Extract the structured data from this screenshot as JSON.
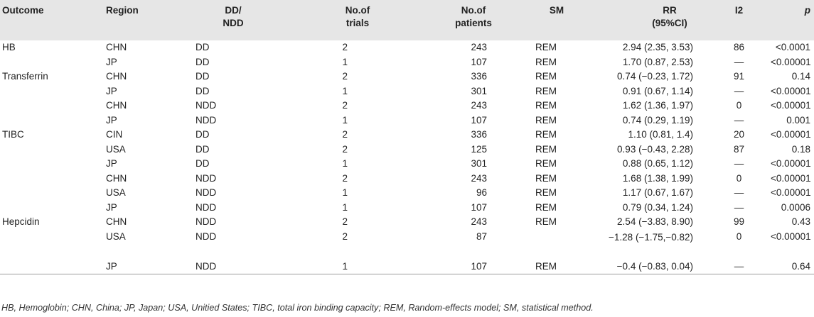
{
  "headers": {
    "outcome": "Outcome",
    "region": "Region",
    "dd_ndd": "DD/ NDD",
    "trials": "No.of trials",
    "patients": "No.of patients",
    "sm": "SM",
    "rr": "RR (95%CI)",
    "i2": "I2",
    "p": "p"
  },
  "rows": [
    {
      "outcome": "HB",
      "region": "CHN",
      "dd": "DD",
      "trials": "2",
      "patients": "243",
      "sm": "REM",
      "rr": "2.94 (2.35, 3.53)",
      "i2": "86",
      "p": "<0.0001"
    },
    {
      "outcome": "",
      "region": "JP",
      "dd": "DD",
      "trials": "1",
      "patients": "107",
      "sm": "REM",
      "rr": "1.70 (0.87, 2.53)",
      "i2": "—",
      "p": "<0.00001"
    },
    {
      "outcome": "Transferrin",
      "region": "CHN",
      "dd": "DD",
      "trials": "2",
      "patients": "336",
      "sm": "REM",
      "rr": "0.74 (−0.23, 1.72)",
      "i2": "91",
      "p": "0.14"
    },
    {
      "outcome": "",
      "region": "JP",
      "dd": "DD",
      "trials": "1",
      "patients": "301",
      "sm": "REM",
      "rr": "0.91 (0.67, 1.14)",
      "i2": "—",
      "p": "<0.00001"
    },
    {
      "outcome": "",
      "region": "CHN",
      "dd": "NDD",
      "trials": "2",
      "patients": "243",
      "sm": "REM",
      "rr": "1.62 (1.36, 1.97)",
      "i2": "0",
      "p": "<0.00001"
    },
    {
      "outcome": "",
      "region": "JP",
      "dd": "NDD",
      "trials": "1",
      "patients": "107",
      "sm": "REM",
      "rr": "0.74 (0.29, 1.19)",
      "i2": "—",
      "p": "0.001"
    },
    {
      "outcome": "TIBC",
      "region": "CIN",
      "dd": "DD",
      "trials": "2",
      "patients": "336",
      "sm": "REM",
      "rr": "1.10 (0.81, 1.4)",
      "i2": "20",
      "p": "<0.00001"
    },
    {
      "outcome": "",
      "region": "USA",
      "dd": "DD",
      "trials": "2",
      "patients": "125",
      "sm": "REM",
      "rr": "0.93 (−0.43, 2.28)",
      "i2": "87",
      "p": "0.18"
    },
    {
      "outcome": "",
      "region": "JP",
      "dd": "DD",
      "trials": "1",
      "patients": "301",
      "sm": "REM",
      "rr": "0.88 (0.65, 1.12)",
      "i2": "—",
      "p": "<0.00001"
    },
    {
      "outcome": "",
      "region": "CHN",
      "dd": "NDD",
      "trials": "2",
      "patients": "243",
      "sm": "REM",
      "rr": "1.68 (1.38, 1.99)",
      "i2": "0",
      "p": "<0.00001"
    },
    {
      "outcome": "",
      "region": "USA",
      "dd": "NDD",
      "trials": "1",
      "patients": "96",
      "sm": "REM",
      "rr": "1.17 (0.67, 1.67)",
      "i2": "—",
      "p": "<0.00001"
    },
    {
      "outcome": "",
      "region": "JP",
      "dd": "NDD",
      "trials": "1",
      "patients": "107",
      "sm": "REM",
      "rr": "0.79 (0.34, 1.24)",
      "i2": "—",
      "p": "0.0006"
    },
    {
      "outcome": "Hepcidin",
      "region": "CHN",
      "dd": "NDD",
      "trials": "2",
      "patients": "243",
      "sm": "REM",
      "rr": "2.54 (−3.83, 8.90)",
      "i2": "99",
      "p": "0.43"
    },
    {
      "outcome": "",
      "region": "USA",
      "dd": "NDD",
      "trials": "2",
      "patients": "87",
      "sm": "",
      "rr": "−1.28 (−1.75,−0.82)",
      "i2": "0",
      "p": "<0.00001"
    },
    {
      "outcome": "",
      "region": "JP",
      "dd": "NDD",
      "trials": "1",
      "patients": "107",
      "sm": "REM",
      "rr": "−0.4 (−0.83, 0.04)",
      "i2": "—",
      "p": "0.64"
    }
  ],
  "footnote": "HB, Hemoglobin; CHN, China; JP, Japan; USA, Unitied States; TIBC, total iron binding capacity; REM, Random-effects model; SM, statistical method."
}
